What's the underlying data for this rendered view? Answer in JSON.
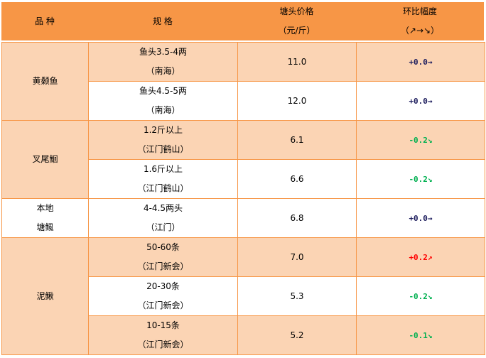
{
  "header": {
    "variety": "品 种",
    "spec": "规 格",
    "price_line1": "塘头价格",
    "price_line2": "（元/斤）",
    "change_line1": "环比幅度",
    "change_line2": "（↗→↘）"
  },
  "colors": {
    "header_bg": "#F79646",
    "row_highlight": "#FBD4B4",
    "up": "#FF0000",
    "down": "#00B050",
    "flat": "#1F1F5F"
  },
  "groups": [
    {
      "variety": "黄颡鱼",
      "rows": [
        {
          "spec1": "鱼头3.5-4两",
          "spec2": "（南海）",
          "price": "11.0",
          "change": "+0.0→",
          "trend": "flat"
        },
        {
          "spec1": "鱼头4.5-5两",
          "spec2": "（南海）",
          "price": "12.0",
          "change": "+0.0→",
          "trend": "flat"
        }
      ]
    },
    {
      "variety": "叉尾鮰",
      "rows": [
        {
          "spec1": "1.2斤以上",
          "spec2": "（江门鹤山）",
          "price": "6.1",
          "change": "-0.2↘",
          "trend": "down"
        },
        {
          "spec1": "1.6斤以上",
          "spec2": "（江门鹤山）",
          "price": "6.6",
          "change": "-0.2↘",
          "trend": "down"
        }
      ]
    },
    {
      "variety1": "本地",
      "variety2": "塘鲺",
      "rows": [
        {
          "spec1": "4-4.5两头",
          "spec2": "（江门）",
          "price": "6.8",
          "change": "+0.0→",
          "trend": "flat"
        }
      ]
    },
    {
      "variety": "泥鳅",
      "rows": [
        {
          "spec1": "50-60条",
          "spec2": "（江门新会）",
          "price": "7.0",
          "change": "+0.2↗",
          "trend": "up"
        },
        {
          "spec1": "20-30条",
          "spec2": "（江门新会）",
          "price": "5.3",
          "change": "-0.2↘",
          "trend": "down"
        },
        {
          "spec1": "10-15条",
          "spec2": "（江门新会）",
          "price": "5.2",
          "change": "-0.1↘",
          "trend": "down"
        }
      ]
    }
  ]
}
